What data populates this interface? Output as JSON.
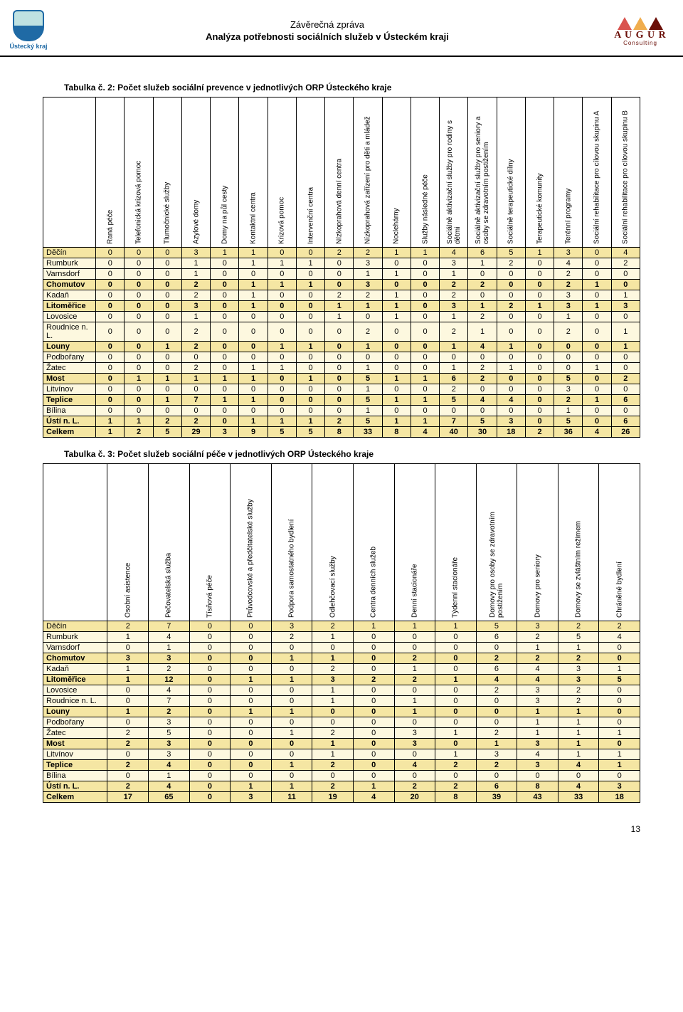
{
  "header": {
    "line1": "Závěrečná zpráva",
    "line2": "Analýza potřebnosti sociálních služeb v Ústeckém kraji",
    "left_label": "Ústecký kraj",
    "right_label": "A U G U R",
    "right_sub": "Consulting"
  },
  "table1": {
    "title": "Tabulka č. 2: Počet služeb sociální prevence v jednotlivých ORP Ústeckého kraje",
    "columns": [
      "Raná péče",
      "Telefonická krizová pomoc",
      "Tlumočnické služby",
      "Azylové domy",
      "Domy na půl cesty",
      "Kontaktní centra",
      "Krizová pomoc",
      "Intervenční centra",
      "Nízkoprahová denní centra",
      "Nízkoprahová zařízení pro děti a mládež",
      "Noclehárny",
      "Služby následné péče",
      "Sociálně aktivizační služby pro rodiny s dětmi",
      "Sociálně aktivizační služby pro seniory a osoby se zdravotním postižením",
      "Sociálně terapeutické dílny",
      "Terapeutické komunity",
      "Terénní programy",
      "Sociální rehabilitace pro cílovou skupinu A",
      "Sociální rehabilitace pro cílovou skupinu B"
    ],
    "rows": [
      {
        "label": "Děčín",
        "v": [
          0,
          0,
          0,
          3,
          1,
          1,
          0,
          0,
          2,
          2,
          1,
          1,
          4,
          6,
          5,
          1,
          3,
          0,
          4
        ],
        "bold": false,
        "shade": true
      },
      {
        "label": "Rumburk",
        "v": [
          0,
          0,
          0,
          1,
          0,
          1,
          1,
          1,
          0,
          3,
          0,
          0,
          3,
          1,
          2,
          0,
          4,
          0,
          2
        ]
      },
      {
        "label": "Varnsdorf",
        "v": [
          0,
          0,
          0,
          1,
          0,
          0,
          0,
          0,
          0,
          1,
          1,
          0,
          1,
          0,
          0,
          0,
          2,
          0,
          0
        ]
      },
      {
        "label": "Chomutov",
        "v": [
          0,
          0,
          0,
          2,
          0,
          1,
          1,
          1,
          0,
          3,
          0,
          0,
          2,
          2,
          0,
          0,
          2,
          1,
          0
        ],
        "bold": true,
        "shade": true
      },
      {
        "label": "Kadaň",
        "v": [
          0,
          0,
          0,
          2,
          0,
          1,
          0,
          0,
          2,
          2,
          1,
          0,
          2,
          0,
          0,
          0,
          3,
          0,
          1
        ]
      },
      {
        "label": "Litoměřice",
        "v": [
          0,
          0,
          0,
          3,
          0,
          1,
          0,
          0,
          1,
          1,
          1,
          0,
          3,
          1,
          2,
          1,
          3,
          1,
          3
        ],
        "bold": true,
        "shade": true
      },
      {
        "label": "Lovosice",
        "v": [
          0,
          0,
          0,
          1,
          0,
          0,
          0,
          0,
          1,
          0,
          1,
          0,
          1,
          2,
          0,
          0,
          1,
          0,
          0
        ]
      },
      {
        "label": "Roudnice n. L.",
        "v": [
          0,
          0,
          0,
          2,
          0,
          0,
          0,
          0,
          0,
          2,
          0,
          0,
          2,
          1,
          0,
          0,
          2,
          0,
          1
        ]
      },
      {
        "label": "Louny",
        "v": [
          0,
          0,
          1,
          2,
          0,
          0,
          1,
          1,
          0,
          1,
          0,
          0,
          1,
          4,
          1,
          0,
          0,
          0,
          1
        ],
        "bold": true,
        "shade": true
      },
      {
        "label": "Podbořany",
        "v": [
          0,
          0,
          0,
          0,
          0,
          0,
          0,
          0,
          0,
          0,
          0,
          0,
          0,
          0,
          0,
          0,
          0,
          0,
          0
        ]
      },
      {
        "label": "Žatec",
        "v": [
          0,
          0,
          0,
          2,
          0,
          1,
          1,
          0,
          0,
          1,
          0,
          0,
          1,
          2,
          1,
          0,
          0,
          1,
          0
        ]
      },
      {
        "label": "Most",
        "v": [
          0,
          1,
          1,
          1,
          1,
          1,
          0,
          1,
          0,
          5,
          1,
          1,
          6,
          2,
          0,
          0,
          5,
          0,
          2
        ],
        "bold": true,
        "shade": true
      },
      {
        "label": "Litvínov",
        "v": [
          0,
          0,
          0,
          0,
          0,
          0,
          0,
          0,
          0,
          1,
          0,
          0,
          2,
          0,
          0,
          0,
          3,
          0,
          0
        ]
      },
      {
        "label": "Teplice",
        "v": [
          0,
          0,
          1,
          7,
          1,
          1,
          0,
          0,
          0,
          5,
          1,
          1,
          5,
          4,
          4,
          0,
          2,
          1,
          6
        ],
        "bold": true,
        "shade": true
      },
      {
        "label": "Bílina",
        "v": [
          0,
          0,
          0,
          0,
          0,
          0,
          0,
          0,
          0,
          1,
          0,
          0,
          0,
          0,
          0,
          0,
          1,
          0,
          0
        ]
      },
      {
        "label": "Ústí n. L.",
        "v": [
          1,
          1,
          2,
          2,
          0,
          1,
          1,
          1,
          2,
          5,
          1,
          1,
          7,
          5,
          3,
          0,
          5,
          0,
          6
        ],
        "bold": true,
        "shade": true
      },
      {
        "label": "Celkem",
        "v": [
          1,
          2,
          5,
          29,
          3,
          9,
          5,
          5,
          8,
          33,
          8,
          4,
          40,
          30,
          18,
          2,
          36,
          4,
          26
        ],
        "bold": true,
        "shade": true
      }
    ]
  },
  "table2": {
    "title": "Tabulka č. 3: Počet služeb sociální péče v jednotlivých ORP Ústeckého kraje",
    "columns": [
      "Osobní asistence",
      "Pečovatelská služba",
      "Tísňová péče",
      "Průvodcovské a předčitatelské služby",
      "Podpora samostatného bydlení",
      "Odlehčovací služby",
      "Centra denních služeb",
      "Denní stacionáře",
      "Týdenní stacionáře",
      "Domovy pro osoby se zdravotním postižením",
      "Domovy pro seniory",
      "Domovy se zvláštním režimem",
      "Chráněné bydlení"
    ],
    "rows": [
      {
        "label": "Děčín",
        "v": [
          2,
          7,
          0,
          0,
          3,
          2,
          1,
          1,
          1,
          5,
          3,
          2,
          2
        ],
        "bold": false,
        "shade": true
      },
      {
        "label": "Rumburk",
        "v": [
          1,
          4,
          0,
          0,
          2,
          1,
          0,
          0,
          0,
          6,
          2,
          5,
          4
        ]
      },
      {
        "label": "Varnsdorf",
        "v": [
          0,
          1,
          0,
          0,
          0,
          0,
          0,
          0,
          0,
          0,
          1,
          1,
          0
        ]
      },
      {
        "label": "Chomutov",
        "v": [
          3,
          3,
          0,
          0,
          1,
          1,
          0,
          2,
          0,
          2,
          2,
          2,
          0
        ],
        "bold": true,
        "shade": true
      },
      {
        "label": "Kadaň",
        "v": [
          1,
          2,
          0,
          0,
          0,
          2,
          0,
          1,
          0,
          6,
          4,
          3,
          1
        ]
      },
      {
        "label": "Litoměřice",
        "v": [
          1,
          12,
          0,
          1,
          1,
          3,
          2,
          2,
          1,
          4,
          4,
          3,
          5
        ],
        "bold": true,
        "shade": true
      },
      {
        "label": "Lovosice",
        "v": [
          0,
          4,
          0,
          0,
          0,
          1,
          0,
          0,
          0,
          2,
          3,
          2,
          0
        ]
      },
      {
        "label": "Roudnice n. L.",
        "v": [
          0,
          7,
          0,
          0,
          0,
          1,
          0,
          1,
          0,
          0,
          3,
          2,
          0
        ]
      },
      {
        "label": "Louny",
        "v": [
          1,
          2,
          0,
          1,
          1,
          0,
          0,
          1,
          0,
          0,
          1,
          1,
          0
        ],
        "bold": true,
        "shade": true
      },
      {
        "label": "Podbořany",
        "v": [
          0,
          3,
          0,
          0,
          0,
          0,
          0,
          0,
          0,
          0,
          1,
          1,
          0
        ]
      },
      {
        "label": "Žatec",
        "v": [
          2,
          5,
          0,
          0,
          1,
          2,
          0,
          3,
          1,
          2,
          1,
          1,
          1
        ]
      },
      {
        "label": "Most",
        "v": [
          2,
          3,
          0,
          0,
          0,
          1,
          0,
          3,
          0,
          1,
          3,
          1,
          0
        ],
        "bold": true,
        "shade": true
      },
      {
        "label": "Litvínov",
        "v": [
          0,
          3,
          0,
          0,
          0,
          1,
          0,
          0,
          1,
          3,
          4,
          1,
          1
        ]
      },
      {
        "label": "Teplice",
        "v": [
          2,
          4,
          0,
          0,
          1,
          2,
          0,
          4,
          2,
          2,
          3,
          4,
          1
        ],
        "bold": true,
        "shade": true
      },
      {
        "label": "Bílina",
        "v": [
          0,
          1,
          0,
          0,
          0,
          0,
          0,
          0,
          0,
          0,
          0,
          0,
          0
        ]
      },
      {
        "label": "Ústí n. L.",
        "v": [
          2,
          4,
          0,
          1,
          1,
          2,
          1,
          2,
          2,
          6,
          8,
          4,
          3
        ],
        "bold": true,
        "shade": true
      },
      {
        "label": "Celkem",
        "v": [
          17,
          65,
          0,
          3,
          11,
          19,
          4,
          20,
          8,
          39,
          43,
          33,
          18
        ],
        "bold": true,
        "shade": true
      }
    ]
  },
  "page_number": "13"
}
